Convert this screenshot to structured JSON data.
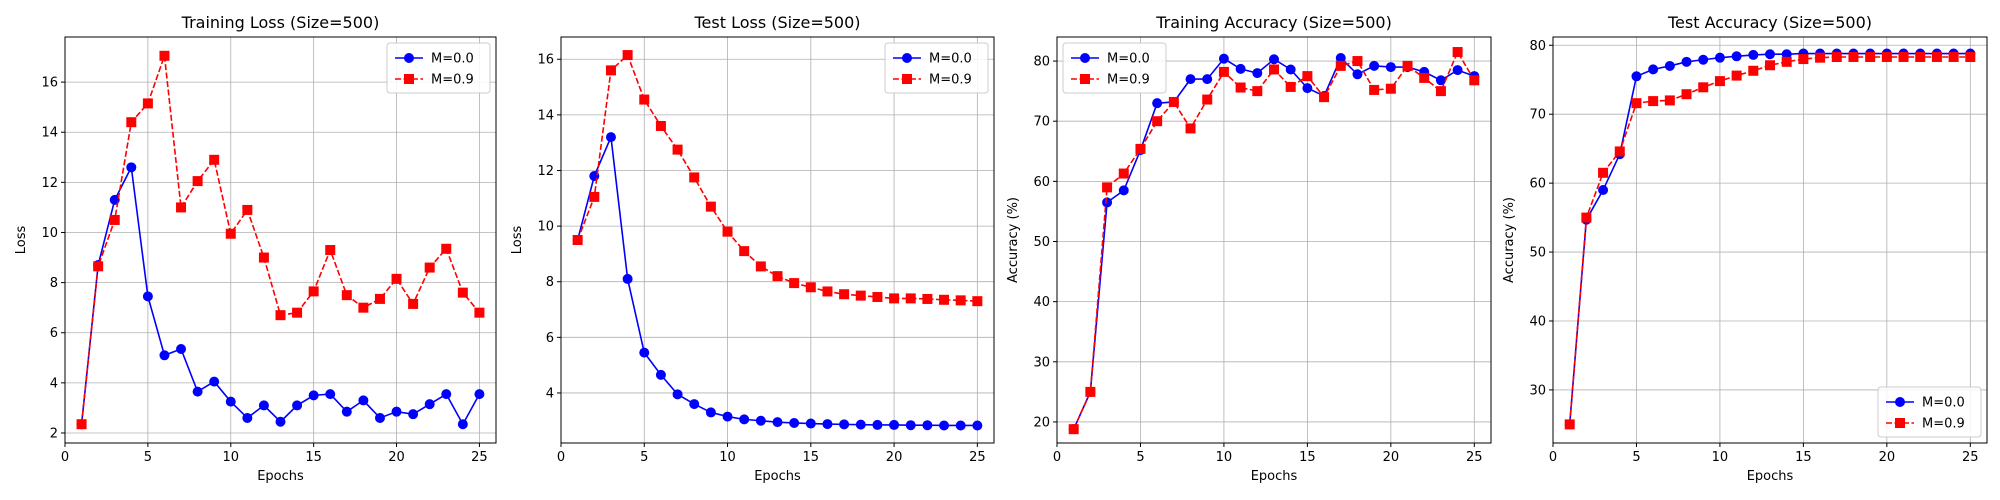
{
  "chart_data": [
    {
      "type": "line",
      "title": "Training Loss (Size=500)",
      "xlabel": "Epochs",
      "ylabel": "Loss",
      "xlim": [
        0,
        26
      ],
      "ylim": [
        1.6,
        17.8
      ],
      "xticks": [
        0,
        5,
        10,
        15,
        20,
        25
      ],
      "yticks": [
        2,
        4,
        6,
        8,
        10,
        12,
        14,
        16
      ],
      "grid": true,
      "legend_position": "upper right",
      "x": [
        1,
        2,
        3,
        4,
        5,
        6,
        7,
        8,
        9,
        10,
        11,
        12,
        13,
        14,
        15,
        16,
        17,
        18,
        19,
        20,
        21,
        22,
        23,
        24,
        25
      ],
      "series": [
        {
          "name": "M=0.0",
          "color": "#0000ff",
          "marker": "circle",
          "line_style": "solid",
          "values": [
            2.35,
            8.7,
            11.3,
            12.6,
            7.45,
            5.1,
            5.35,
            3.65,
            4.05,
            3.25,
            2.6,
            3.1,
            2.45,
            3.1,
            3.5,
            3.55,
            2.85,
            3.3,
            2.6,
            2.85,
            2.75,
            3.15,
            3.55,
            2.35,
            3.55
          ]
        },
        {
          "name": "M=0.9",
          "color": "#ff0000",
          "marker": "square",
          "line_style": "dashed",
          "values": [
            2.35,
            8.65,
            10.5,
            14.4,
            15.15,
            17.05,
            11.0,
            12.05,
            12.9,
            9.95,
            10.9,
            9.0,
            6.7,
            6.8,
            7.65,
            9.3,
            7.5,
            7.0,
            7.35,
            8.15,
            7.15,
            8.6,
            9.35,
            7.6,
            6.8
          ]
        }
      ]
    },
    {
      "type": "line",
      "title": "Test Loss (Size=500)",
      "xlabel": "Epochs",
      "ylabel": "Loss",
      "xlim": [
        0,
        26
      ],
      "ylim": [
        2.2,
        16.8
      ],
      "xticks": [
        0,
        5,
        10,
        15,
        20,
        25
      ],
      "yticks": [
        4,
        6,
        8,
        10,
        12,
        14,
        16
      ],
      "grid": true,
      "legend_position": "upper right",
      "x": [
        1,
        2,
        3,
        4,
        5,
        6,
        7,
        8,
        9,
        10,
        11,
        12,
        13,
        14,
        15,
        16,
        17,
        18,
        19,
        20,
        21,
        22,
        23,
        24,
        25
      ],
      "series": [
        {
          "name": "M=0.0",
          "color": "#0000ff",
          "marker": "circle",
          "line_style": "solid",
          "values": [
            9.5,
            11.8,
            13.2,
            8.1,
            5.45,
            4.65,
            3.95,
            3.6,
            3.3,
            3.15,
            3.05,
            3.0,
            2.95,
            2.92,
            2.9,
            2.88,
            2.87,
            2.86,
            2.85,
            2.85,
            2.84,
            2.84,
            2.83,
            2.83,
            2.83
          ]
        },
        {
          "name": "M=0.9",
          "color": "#ff0000",
          "marker": "square",
          "line_style": "dashed",
          "values": [
            9.5,
            11.05,
            15.6,
            16.15,
            14.55,
            13.6,
            12.75,
            11.75,
            10.7,
            9.8,
            9.1,
            8.55,
            8.2,
            7.95,
            7.8,
            7.65,
            7.55,
            7.5,
            7.45,
            7.4,
            7.4,
            7.38,
            7.35,
            7.33,
            7.3
          ]
        }
      ]
    },
    {
      "type": "line",
      "title": "Training Accuracy (Size=500)",
      "xlabel": "Epochs",
      "ylabel": "Accuracy (%)",
      "xlim": [
        0,
        26
      ],
      "ylim": [
        16.5,
        84
      ],
      "xticks": [
        0,
        5,
        10,
        15,
        20,
        25
      ],
      "yticks": [
        20,
        30,
        40,
        50,
        60,
        70,
        80
      ],
      "grid": true,
      "legend_position": "upper left",
      "x": [
        1,
        2,
        3,
        4,
        5,
        6,
        7,
        8,
        9,
        10,
        11,
        12,
        13,
        14,
        15,
        16,
        17,
        18,
        19,
        20,
        21,
        22,
        23,
        24,
        25
      ],
      "series": [
        {
          "name": "M=0.0",
          "color": "#0000ff",
          "marker": "circle",
          "line_style": "solid",
          "values": [
            18.8,
            25.0,
            56.5,
            58.5,
            65.2,
            73.0,
            73.2,
            77.0,
            77.0,
            80.4,
            78.7,
            78.0,
            80.3,
            78.6,
            75.5,
            74.2,
            80.5,
            77.8,
            79.2,
            79.0,
            79.0,
            78.2,
            76.8,
            78.5,
            77.5
          ]
        },
        {
          "name": "M=0.9",
          "color": "#ff0000",
          "marker": "square",
          "line_style": "dashed",
          "values": [
            18.8,
            25.0,
            59.0,
            61.3,
            65.4,
            70.0,
            73.2,
            68.8,
            73.6,
            78.2,
            75.6,
            75.0,
            78.6,
            75.7,
            77.5,
            74.0,
            79.2,
            80.0,
            75.2,
            75.4,
            79.2,
            77.2,
            75.0,
            81.5,
            76.8
          ]
        }
      ]
    },
    {
      "type": "line",
      "title": "Test Accuracy (Size=500)",
      "xlabel": "Epochs",
      "ylabel": "Accuracy (%)",
      "xlim": [
        0,
        26
      ],
      "ylim": [
        22.3,
        81.2
      ],
      "xticks": [
        0,
        5,
        10,
        15,
        20,
        25
      ],
      "yticks": [
        30,
        40,
        50,
        60,
        70,
        80
      ],
      "grid": true,
      "legend_position": "lower right",
      "x": [
        1,
        2,
        3,
        4,
        5,
        6,
        7,
        8,
        9,
        10,
        11,
        12,
        13,
        14,
        15,
        16,
        17,
        18,
        19,
        20,
        21,
        22,
        23,
        24,
        25
      ],
      "series": [
        {
          "name": "M=0.0",
          "color": "#0000ff",
          "marker": "circle",
          "line_style": "solid",
          "values": [
            25.0,
            54.7,
            59.0,
            64.2,
            75.5,
            76.5,
            77.0,
            77.6,
            77.9,
            78.2,
            78.4,
            78.6,
            78.7,
            78.7,
            78.8,
            78.8,
            78.8,
            78.8,
            78.8,
            78.8,
            78.8,
            78.8,
            78.8,
            78.8,
            78.8
          ]
        },
        {
          "name": "M=0.9",
          "color": "#ff0000",
          "marker": "square",
          "line_style": "dashed",
          "values": [
            25.0,
            55.0,
            61.5,
            64.6,
            71.6,
            71.9,
            72.0,
            72.9,
            73.9,
            74.8,
            75.6,
            76.3,
            77.1,
            77.6,
            78.0,
            78.2,
            78.3,
            78.3,
            78.3,
            78.3,
            78.3,
            78.3,
            78.3,
            78.3,
            78.3
          ]
        }
      ]
    }
  ]
}
